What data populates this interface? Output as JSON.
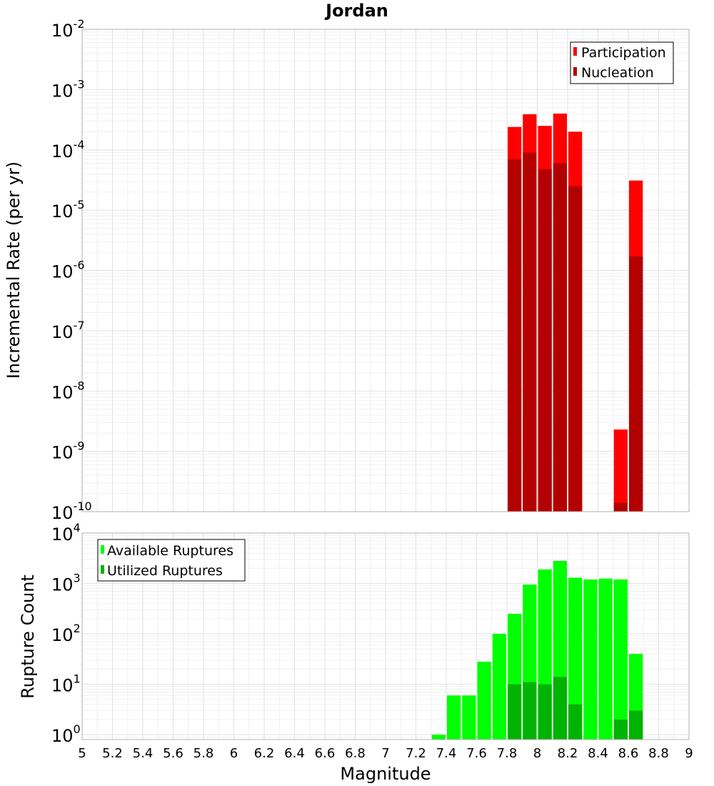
{
  "chart_data": [
    {
      "type": "bar",
      "scale": "log",
      "title": "Jordan",
      "ylabel": "Incremental Rate (per yr)",
      "ylim": [
        1e-10,
        0.01
      ],
      "yticks": [
        {
          "base": "10",
          "exp": "-10"
        },
        {
          "base": "10",
          "exp": "-9"
        },
        {
          "base": "10",
          "exp": "-8"
        },
        {
          "base": "10",
          "exp": "-7"
        },
        {
          "base": "10",
          "exp": "-6"
        },
        {
          "base": "10",
          "exp": "-5"
        },
        {
          "base": "10",
          "exp": "-4"
        },
        {
          "base": "10",
          "exp": "-3"
        },
        {
          "base": "10",
          "exp": "-2"
        }
      ],
      "grid": true,
      "legend_position": "top-right",
      "series": [
        {
          "name": "Participation",
          "color": "#ff0000",
          "points": [
            {
              "x": 7.85,
              "y": 0.00024
            },
            {
              "x": 7.95,
              "y": 0.00039
            },
            {
              "x": 8.05,
              "y": 0.00025
            },
            {
              "x": 8.15,
              "y": 0.0004
            },
            {
              "x": 8.25,
              "y": 0.0002
            },
            {
              "x": 8.55,
              "y": 2.3e-09
            },
            {
              "x": 8.65,
              "y": 3.1e-05
            }
          ]
        },
        {
          "name": "Nucleation",
          "color": "#b30000",
          "points": [
            {
              "x": 7.85,
              "y": 7e-05
            },
            {
              "x": 7.95,
              "y": 9e-05
            },
            {
              "x": 8.05,
              "y": 4.8e-05
            },
            {
              "x": 8.15,
              "y": 6e-05
            },
            {
              "x": 8.25,
              "y": 2.5e-05
            },
            {
              "x": 8.55,
              "y": 1.4e-10
            },
            {
              "x": 8.65,
              "y": 1.7e-06
            }
          ]
        }
      ]
    },
    {
      "type": "bar",
      "scale": "log",
      "ylabel": "Rupture Count",
      "xlabel": "Magnitude",
      "xlim": [
        5,
        9
      ],
      "xticks": [
        "5",
        "5.2",
        "5.4",
        "5.6",
        "5.8",
        "6",
        "6.2",
        "6.4",
        "6.6",
        "6.8",
        "7",
        "7.2",
        "7.4",
        "7.6",
        "7.8",
        "8",
        "8.2",
        "8.4",
        "8.6",
        "8.8",
        "9"
      ],
      "ylim": [
        0.8,
        10000
      ],
      "yticks": [
        {
          "base": "10",
          "exp": "0"
        },
        {
          "base": "10",
          "exp": "1"
        },
        {
          "base": "10",
          "exp": "2"
        },
        {
          "base": "10",
          "exp": "3"
        },
        {
          "base": "10",
          "exp": "4"
        }
      ],
      "grid": true,
      "legend_position": "top-left",
      "series": [
        {
          "name": "Available Ruptures",
          "color": "#00ff00",
          "points": [
            {
              "x": 7.35,
              "y": 1
            },
            {
              "x": 7.45,
              "y": 6
            },
            {
              "x": 7.55,
              "y": 6
            },
            {
              "x": 7.65,
              "y": 28
            },
            {
              "x": 7.75,
              "y": 100
            },
            {
              "x": 7.85,
              "y": 250
            },
            {
              "x": 7.95,
              "y": 950
            },
            {
              "x": 8.05,
              "y": 1900
            },
            {
              "x": 8.15,
              "y": 2800
            },
            {
              "x": 8.25,
              "y": 1300
            },
            {
              "x": 8.35,
              "y": 1200
            },
            {
              "x": 8.45,
              "y": 1250
            },
            {
              "x": 8.55,
              "y": 1200
            },
            {
              "x": 8.65,
              "y": 40
            }
          ]
        },
        {
          "name": "Utilized Ruptures",
          "color": "#00b300",
          "points": [
            {
              "x": 7.85,
              "y": 10
            },
            {
              "x": 7.95,
              "y": 11
            },
            {
              "x": 8.05,
              "y": 10
            },
            {
              "x": 8.15,
              "y": 14
            },
            {
              "x": 8.25,
              "y": 4
            },
            {
              "x": 8.55,
              "y": 2
            },
            {
              "x": 8.65,
              "y": 3
            }
          ]
        }
      ]
    }
  ]
}
